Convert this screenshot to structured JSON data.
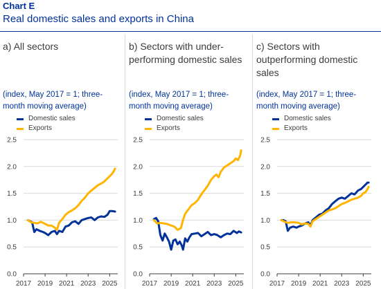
{
  "header": {
    "chart_label": "Chart E",
    "title": "Real domestic sales and exports in China"
  },
  "colors": {
    "domestic": "#003299",
    "exports": "#ffb400",
    "grid": "#d9d9d9"
  },
  "panels": [
    {
      "title": "a) All sectors",
      "subtitle": "(index, May 2017 = 1; three-month moving average)"
    },
    {
      "title": "b) Sectors with under-performing domestic sales",
      "subtitle": "(index, May 2017 = 1; three-month moving average)"
    },
    {
      "title": "c) Sectors with outperforming domestic sales",
      "subtitle": "(index, May 2017 = 1; three-month moving average)"
    }
  ],
  "chart_data": [
    {
      "type": "line",
      "title": "a) All sectors",
      "ylabel": "(index, May 2017 = 1; three-month moving average)",
      "ylim": [
        0.0,
        2.5
      ],
      "yticks": [
        "0.0",
        "0.5",
        "1.0",
        "1.5",
        "2.0",
        "2.5"
      ],
      "xlim": [
        2017.0,
        2025.75
      ],
      "xticks": [
        "2017",
        "2019",
        "2021",
        "2023",
        "2025"
      ],
      "grid": true,
      "legend": "top-left",
      "series": [
        {
          "name": "Domestic sales",
          "x": [
            2017.4,
            2017.6,
            2017.8,
            2018.0,
            2018.2,
            2018.5,
            2018.8,
            2019.0,
            2019.3,
            2019.6,
            2019.9,
            2020.1,
            2020.3,
            2020.6,
            2020.9,
            2021.2,
            2021.5,
            2021.8,
            2022.1,
            2022.4,
            2022.7,
            2023.0,
            2023.3,
            2023.6,
            2023.9,
            2024.2,
            2024.5,
            2024.8,
            2025.0,
            2025.2,
            2025.5
          ],
          "y": [
            1.0,
            0.98,
            0.96,
            0.78,
            0.83,
            0.8,
            0.78,
            0.76,
            0.72,
            0.78,
            0.8,
            0.74,
            0.8,
            0.78,
            0.88,
            0.9,
            0.96,
            0.98,
            0.93,
            1.0,
            1.02,
            1.04,
            1.05,
            1.0,
            1.05,
            1.07,
            1.06,
            1.1,
            1.17,
            1.17,
            1.16
          ]
        },
        {
          "name": "Exports",
          "x": [
            2017.4,
            2017.7,
            2018.0,
            2018.3,
            2018.6,
            2019.0,
            2019.3,
            2019.6,
            2019.9,
            2020.1,
            2020.3,
            2020.6,
            2020.9,
            2021.2,
            2021.5,
            2021.8,
            2022.1,
            2022.4,
            2022.7,
            2023.0,
            2023.3,
            2023.6,
            2023.9,
            2024.2,
            2024.5,
            2024.8,
            2025.0,
            2025.2,
            2025.4,
            2025.5
          ],
          "y": [
            1.0,
            0.96,
            0.95,
            0.94,
            0.97,
            0.93,
            0.9,
            0.9,
            0.86,
            0.82,
            0.95,
            1.02,
            1.1,
            1.15,
            1.18,
            1.22,
            1.28,
            1.36,
            1.42,
            1.5,
            1.55,
            1.6,
            1.65,
            1.68,
            1.72,
            1.78,
            1.82,
            1.86,
            1.92,
            1.96
          ]
        }
      ]
    },
    {
      "type": "line",
      "title": "b) Sectors with under-performing domestic sales",
      "ylabel": "(index, May 2017 = 1; three-month moving average)",
      "ylim": [
        0.0,
        2.5
      ],
      "yticks": [
        "0.0",
        "0.5",
        "1.0",
        "1.5",
        "2.0",
        "2.5"
      ],
      "xlim": [
        2017.0,
        2025.75
      ],
      "xticks": [
        "2017",
        "2019",
        "2021",
        "2023",
        "2025"
      ],
      "grid": true,
      "legend": "top-left",
      "series": [
        {
          "name": "Domestic sales",
          "x": [
            2017.4,
            2017.6,
            2017.8,
            2018.0,
            2018.2,
            2018.4,
            2018.6,
            2018.8,
            2019.0,
            2019.2,
            2019.4,
            2019.6,
            2019.8,
            2020.0,
            2020.1,
            2020.3,
            2020.5,
            2020.7,
            2020.9,
            2021.2,
            2021.5,
            2021.8,
            2022.1,
            2022.4,
            2022.7,
            2023.0,
            2023.3,
            2023.6,
            2023.9,
            2024.2,
            2024.5,
            2024.8,
            2025.1,
            2025.3,
            2025.5
          ],
          "y": [
            1.02,
            1.04,
            0.98,
            0.72,
            0.62,
            0.75,
            0.68,
            0.6,
            0.45,
            0.62,
            0.64,
            0.55,
            0.6,
            0.52,
            0.45,
            0.66,
            0.6,
            0.68,
            0.74,
            0.75,
            0.76,
            0.7,
            0.74,
            0.78,
            0.72,
            0.74,
            0.72,
            0.68,
            0.72,
            0.75,
            0.74,
            0.8,
            0.76,
            0.79,
            0.77
          ]
        },
        {
          "name": "Exports",
          "x": [
            2017.4,
            2017.7,
            2018.0,
            2018.3,
            2018.6,
            2019.0,
            2019.3,
            2019.6,
            2019.9,
            2020.1,
            2020.3,
            2020.6,
            2020.9,
            2021.2,
            2021.5,
            2021.8,
            2022.1,
            2022.4,
            2022.7,
            2023.0,
            2023.2,
            2023.4,
            2023.6,
            2023.9,
            2024.2,
            2024.5,
            2024.8,
            2025.0,
            2025.2,
            2025.4,
            2025.5
          ],
          "y": [
            1.0,
            0.94,
            0.95,
            0.94,
            0.93,
            0.9,
            0.88,
            0.82,
            0.85,
            1.0,
            1.12,
            1.2,
            1.28,
            1.32,
            1.38,
            1.48,
            1.56,
            1.64,
            1.75,
            1.82,
            1.85,
            1.8,
            1.9,
            1.98,
            2.02,
            2.06,
            2.1,
            2.15,
            2.12,
            2.2,
            2.3
          ]
        }
      ]
    },
    {
      "type": "line",
      "title": "c) Sectors with outperforming domestic sales",
      "ylabel": "(index, May 2017 = 1; three-month moving average)",
      "ylim": [
        0.0,
        2.5
      ],
      "yticks": [
        "0.0",
        "0.5",
        "1.0",
        "1.5",
        "2.0",
        "2.5"
      ],
      "xlim": [
        2017.0,
        2025.75
      ],
      "xticks": [
        "2017",
        "2019",
        "2021",
        "2023",
        "2025"
      ],
      "grid": true,
      "legend": "top-left",
      "series": [
        {
          "name": "Domestic sales",
          "x": [
            2017.4,
            2017.6,
            2017.8,
            2018.0,
            2018.2,
            2018.5,
            2018.8,
            2019.0,
            2019.3,
            2019.6,
            2019.9,
            2020.1,
            2020.3,
            2020.6,
            2020.9,
            2021.2,
            2021.5,
            2021.8,
            2022.1,
            2022.4,
            2022.7,
            2023.0,
            2023.3,
            2023.6,
            2023.9,
            2024.2,
            2024.5,
            2024.8,
            2025.0,
            2025.2,
            2025.4,
            2025.5
          ],
          "y": [
            1.0,
            1.0,
            0.98,
            0.8,
            0.86,
            0.88,
            0.86,
            0.88,
            0.9,
            0.94,
            0.96,
            0.9,
            1.0,
            1.05,
            1.1,
            1.12,
            1.18,
            1.22,
            1.3,
            1.35,
            1.4,
            1.42,
            1.4,
            1.45,
            1.5,
            1.48,
            1.55,
            1.58,
            1.62,
            1.66,
            1.7,
            1.7
          ]
        },
        {
          "name": "Exports",
          "x": [
            2017.4,
            2017.7,
            2018.0,
            2018.3,
            2018.6,
            2019.0,
            2019.3,
            2019.6,
            2019.9,
            2020.1,
            2020.3,
            2020.6,
            2020.9,
            2021.2,
            2021.5,
            2021.8,
            2022.1,
            2022.4,
            2022.7,
            2023.0,
            2023.3,
            2023.6,
            2023.9,
            2024.2,
            2024.5,
            2024.8,
            2025.0,
            2025.2,
            2025.4,
            2025.5
          ],
          "y": [
            1.0,
            0.97,
            0.95,
            0.96,
            0.96,
            0.95,
            0.92,
            0.94,
            0.93,
            0.88,
            0.98,
            1.02,
            1.06,
            1.1,
            1.14,
            1.18,
            1.2,
            1.22,
            1.26,
            1.3,
            1.32,
            1.35,
            1.38,
            1.4,
            1.42,
            1.45,
            1.5,
            1.52,
            1.58,
            1.62
          ]
        }
      ]
    }
  ]
}
